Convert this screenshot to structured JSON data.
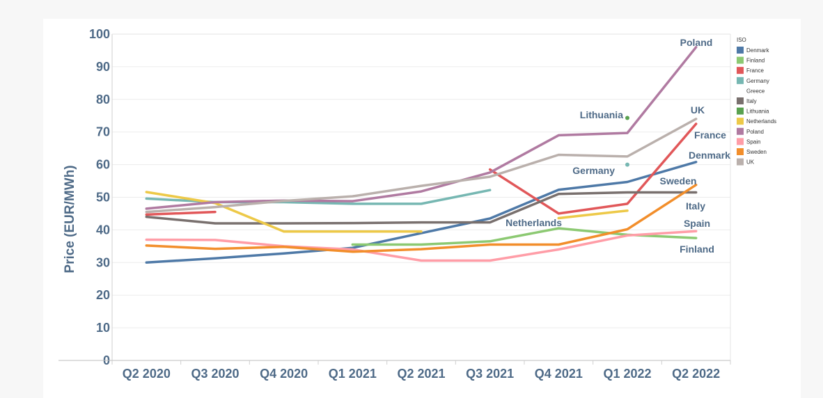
{
  "chart_data": {
    "type": "line",
    "title": "",
    "xlabel": "",
    "ylabel": "Price (EUR/MWh)",
    "categories": [
      "Q2 2020",
      "Q3 2020",
      "Q4 2020",
      "Q1 2021",
      "Q2 2021",
      "Q3 2021",
      "Q4 2021",
      "Q1 2022",
      "Q2 2022"
    ],
    "ylim": [
      0,
      100
    ],
    "yticks": [
      0,
      10,
      20,
      30,
      40,
      50,
      60,
      70,
      80,
      90,
      100
    ],
    "grid": true,
    "legend": {
      "title": "ISO",
      "placement": "right"
    },
    "series": [
      {
        "name": "Denmark",
        "color": "#4e79a7",
        "values": [
          30,
          31.3,
          32.8,
          34.5,
          39,
          43.5,
          52.3,
          54.7,
          60.8
        ]
      },
      {
        "name": "Finland",
        "color": "#8cc972",
        "values": [
          null,
          null,
          null,
          35.5,
          35.5,
          36.5,
          40.5,
          38.5,
          37.5
        ]
      },
      {
        "name": "France",
        "color": "#e15759",
        "values": [
          44.7,
          45.5,
          null,
          null,
          null,
          58.5,
          45,
          48,
          72.5
        ]
      },
      {
        "name": "Germany",
        "color": "#76b7b2",
        "values": [
          49.6,
          48.5,
          48.5,
          48,
          48,
          52.2,
          null,
          60,
          null
        ]
      },
      {
        "name": "Greece",
        "color": null,
        "values": [
          null,
          null,
          null,
          null,
          null,
          null,
          null,
          null,
          null
        ]
      },
      {
        "name": "Italy",
        "color": "#79706e",
        "values": [
          44,
          42,
          42,
          42.1,
          42.3,
          42.3,
          51,
          51.5,
          51.5
        ]
      },
      {
        "name": "Lithuania",
        "color": "#59a14f",
        "values": [
          null,
          null,
          null,
          null,
          null,
          null,
          null,
          74.3,
          null
        ]
      },
      {
        "name": "Netherlands",
        "color": "#edc948",
        "values": [
          51.6,
          48.2,
          39.5,
          39.5,
          39.5,
          null,
          43.6,
          45.9,
          null
        ]
      },
      {
        "name": "Poland",
        "color": "#b07aa1",
        "values": [
          46.5,
          48.5,
          49,
          48.8,
          51.8,
          57.6,
          69,
          69.7,
          96
        ]
      },
      {
        "name": "Spain",
        "color": "#ff9da7",
        "values": [
          37,
          36.9,
          35,
          34,
          30.6,
          30.6,
          34,
          38.3,
          39.6
        ]
      },
      {
        "name": "Sweden",
        "color": "#f28e2b",
        "values": [
          35.2,
          34.2,
          34.8,
          33.3,
          34.1,
          35.5,
          35.5,
          40.2,
          53.8
        ]
      },
      {
        "name": "UK",
        "color": "#bab0ac",
        "values": [
          45.5,
          47,
          48.9,
          50.3,
          53.5,
          56.3,
          63,
          62.5,
          74
        ]
      }
    ],
    "annotations": [
      {
        "text": "Poland",
        "series": "Poland"
      },
      {
        "text": "Lithuania",
        "series": "Lithuania"
      },
      {
        "text": "UK",
        "series": "UK"
      },
      {
        "text": "France",
        "series": "France"
      },
      {
        "text": "Denmark",
        "series": "Denmark"
      },
      {
        "text": "Germany",
        "series": "Germany"
      },
      {
        "text": "Sweden",
        "series": "Sweden"
      },
      {
        "text": "Italy",
        "series": "Italy"
      },
      {
        "text": "Netherlands",
        "series": "Netherlands"
      },
      {
        "text": "Spain",
        "series": "Spain"
      },
      {
        "text": "Finland",
        "series": "Finland"
      }
    ]
  }
}
